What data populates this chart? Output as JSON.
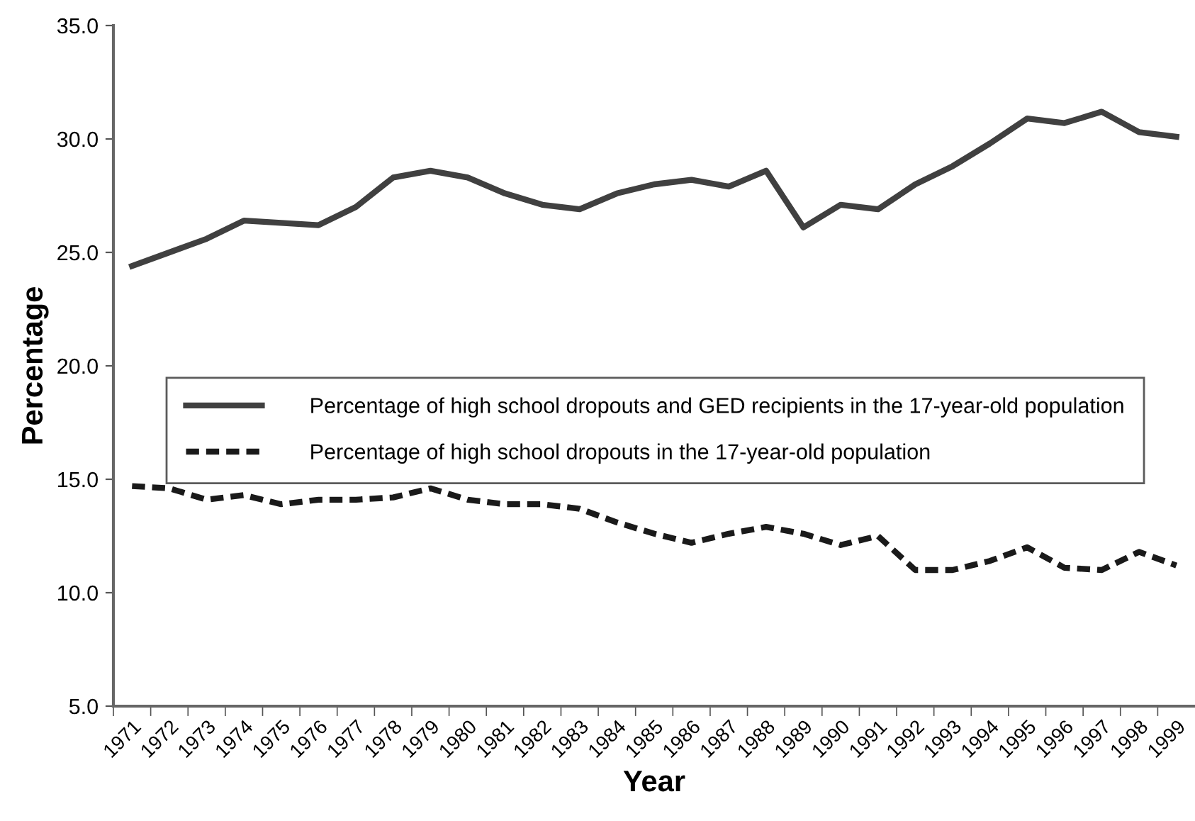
{
  "chart_data": {
    "type": "line",
    "xlabel": "Year",
    "ylabel": "Percentage",
    "categories": [
      "1971",
      "1972",
      "1973",
      "1974",
      "1975",
      "1976",
      "1977",
      "1978",
      "1979",
      "1980",
      "1981",
      "1982",
      "1983",
      "1984",
      "1985",
      "1986",
      "1987",
      "1988",
      "1989",
      "1990",
      "1991",
      "1992",
      "1993",
      "1994",
      "1995",
      "1996",
      "1997",
      "1998",
      "1999"
    ],
    "series": [
      {
        "name": "Percentage of high school dropouts and GED recipients in the 17-year-old population",
        "color": "#404040",
        "line_style": "solid",
        "values": [
          24.4,
          25.0,
          25.6,
          26.4,
          26.3,
          26.2,
          27.0,
          28.3,
          28.6,
          28.3,
          27.6,
          27.1,
          26.9,
          27.6,
          28.0,
          28.2,
          27.9,
          28.6,
          26.1,
          27.1,
          26.9,
          28.0,
          28.8,
          29.8,
          30.9,
          30.7,
          31.2,
          30.3,
          30.1
        ]
      },
      {
        "name": "Percentage of high school dropouts in the 17-year-old population",
        "color": "#1a1a1a",
        "line_style": "dashed",
        "values": [
          14.7,
          14.6,
          14.1,
          14.3,
          13.9,
          14.1,
          14.1,
          14.2,
          14.6,
          14.1,
          13.9,
          13.9,
          13.7,
          13.1,
          12.6,
          12.2,
          12.6,
          12.9,
          12.6,
          12.1,
          12.5,
          11.0,
          11.0,
          11.4,
          12.0,
          11.1,
          11.0,
          11.8,
          11.2
        ]
      }
    ],
    "ylim": [
      5,
      35
    ],
    "yticks": [
      {
        "value": 5,
        "label": "5.0"
      },
      {
        "value": 10,
        "label": "10.0"
      },
      {
        "value": 15,
        "label": "15.0"
      },
      {
        "value": 20,
        "label": "20.0"
      },
      {
        "value": 25,
        "label": "25.0"
      },
      {
        "value": 30,
        "label": "30.0"
      },
      {
        "value": 35,
        "label": "35.0"
      }
    ],
    "grid": false,
    "legend": "center",
    "marker": "none"
  }
}
